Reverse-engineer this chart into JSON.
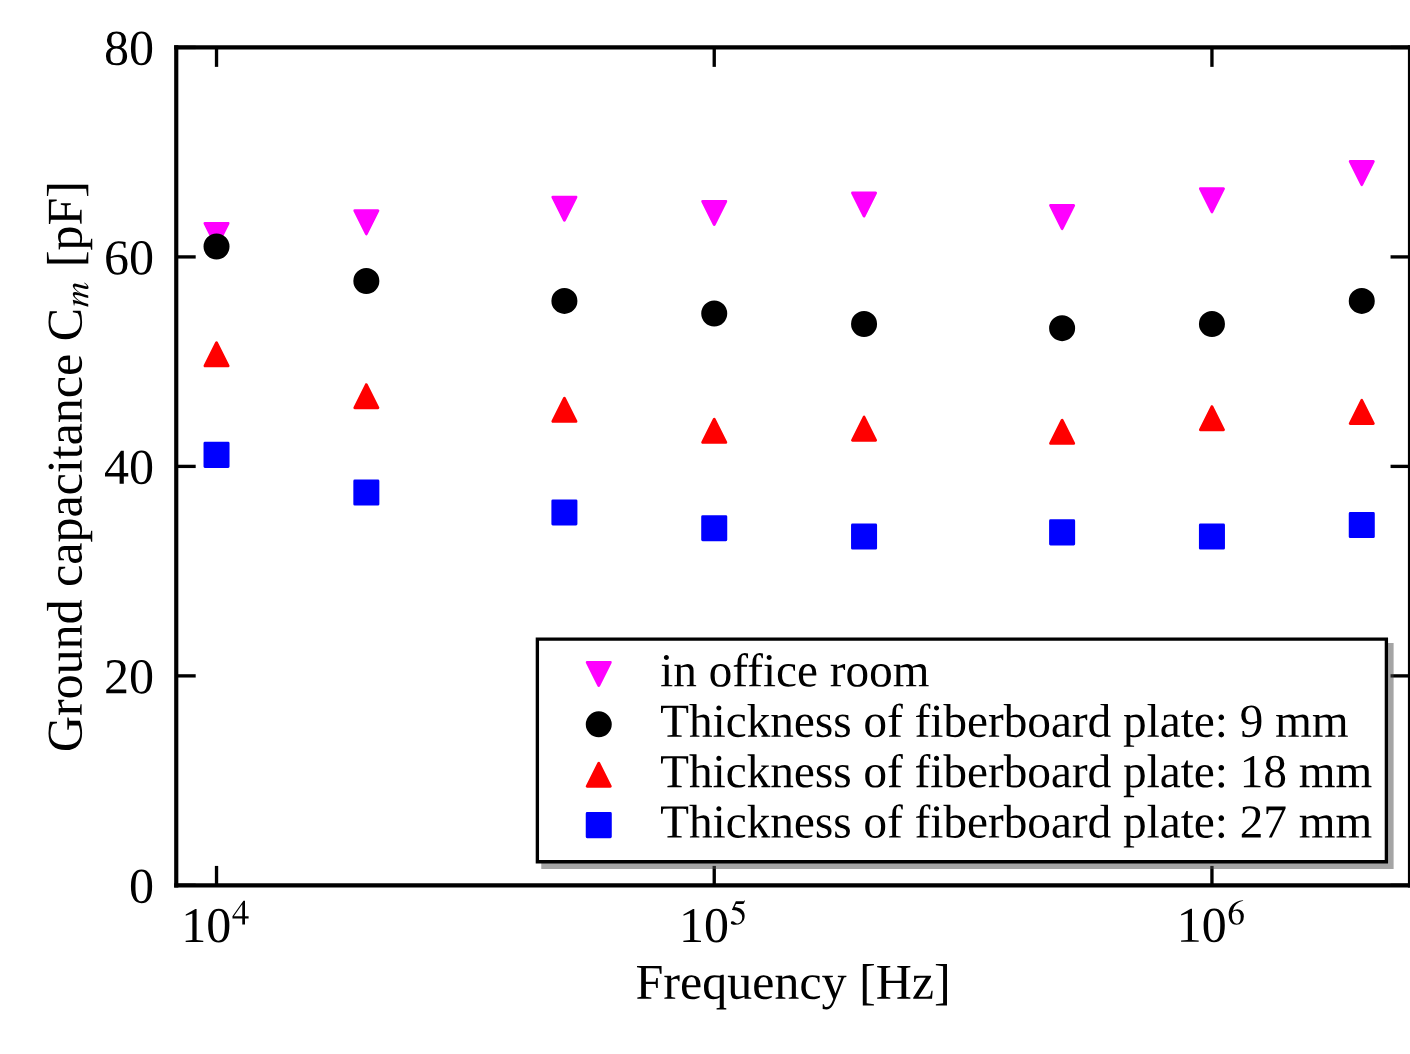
{
  "chart_data": {
    "type": "scatter",
    "xlabel": "Frequency [Hz]",
    "ylabel": "Ground capacitance C$_{m}$ [pF]",
    "x": [
      10000,
      20000,
      50000,
      100000,
      200000,
      500000,
      1000000,
      2000000
    ],
    "series": [
      {
        "name": "in office room",
        "color": "#ff00ff",
        "marker": "triangle_down",
        "values": [
          62.1,
          63.3,
          64.6,
          64.2,
          65.0,
          63.8,
          65.4,
          68.0
        ]
      },
      {
        "name": "Thickness of fiberboard plate: 9 mm",
        "color": "#000000",
        "marker": "circle",
        "values": [
          61.0,
          57.7,
          55.8,
          54.6,
          53.6,
          53.2,
          53.6,
          55.8
        ]
      },
      {
        "name": "Thickness of fiberboard plate: 18 mm",
        "color": "#ff0000",
        "marker": "triangle",
        "values": [
          50.7,
          46.7,
          45.4,
          43.4,
          43.6,
          43.3,
          44.6,
          45.2
        ]
      },
      {
        "name": "Thickness of fiberboard plate: 27 mm",
        "color": "#0000ff",
        "marker": "square",
        "values": [
          41.1,
          37.5,
          35.6,
          34.1,
          33.3,
          33.7,
          33.3,
          34.4
        ]
      }
    ],
    "log": "x",
    "xlim": [
      8300,
      2500000
    ],
    "xticks": [
      {
        "value": 10000,
        "label": "10$^{4}$"
      },
      {
        "value": 100000,
        "label": "10$^{5}$"
      },
      {
        "value": 1000000,
        "label": "10$^{6}$"
      }
    ],
    "ylim": [
      0,
      80
    ],
    "yticks": [
      0,
      20,
      40,
      60,
      80
    ],
    "grid": false,
    "legend": "bottom right"
  }
}
